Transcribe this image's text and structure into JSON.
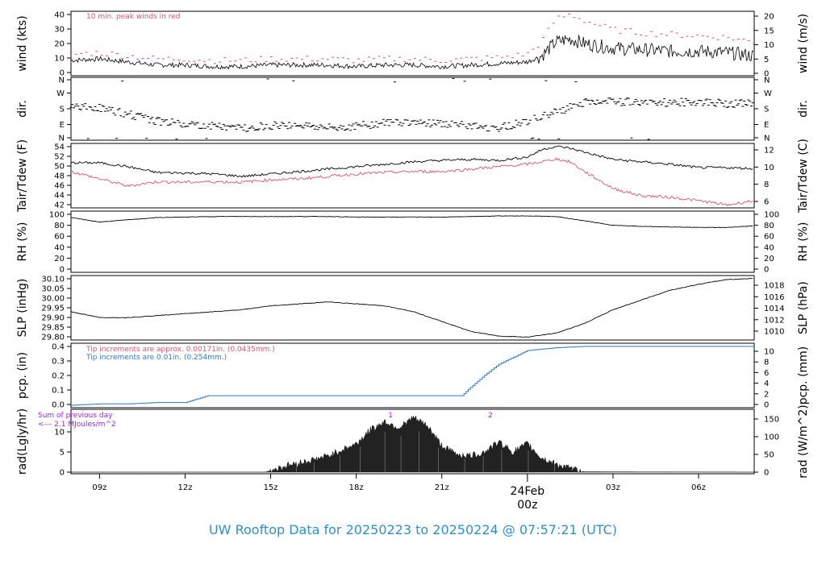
{
  "title": "UW Rooftop Data for 20250223  to  20250224 @ 07:57:21  (UTC)",
  "colors": {
    "title": "#2c8fd6",
    "red": "#df536b",
    "blue": "#2c78c8",
    "purple": "#a020f0",
    "black": "#000000",
    "day_label": "#df536b"
  },
  "time_axis": {
    "tick_labels": [
      "09z",
      "12z",
      "15z",
      "18z",
      "21z",
      "03z",
      "06z"
    ],
    "tick_hours": [
      9,
      12,
      15,
      18,
      21,
      27,
      30
    ],
    "day_label": "24Feb",
    "day_sub": "00z",
    "day_hour": 24,
    "start_hour": 8.0,
    "end_hour": 31.95
  },
  "chart_data": [
    {
      "type": "line",
      "name": "wind",
      "ylabel_left": "wind (kts)",
      "ylabel_right": "wind (m/s)",
      "ylim": [
        0,
        42
      ],
      "left_ticks": [
        "0",
        "10",
        "20",
        "30",
        "40"
      ],
      "right_ticks": [
        "0",
        "5",
        "10",
        "15",
        "20"
      ],
      "annotation": "10 min. peak winds in red",
      "x": [
        8,
        9,
        10,
        11,
        12,
        13,
        14,
        15,
        16,
        17,
        18,
        19,
        20,
        21,
        22,
        23,
        24,
        24.5,
        25,
        25.5,
        26,
        27,
        28,
        29,
        30,
        31,
        31.95
      ],
      "series": [
        {
          "values": [
            10,
            11,
            9,
            7,
            7,
            6,
            6,
            7,
            7,
            7,
            6,
            7,
            7,
            6,
            7,
            8,
            9,
            13,
            22,
            24,
            21,
            18,
            17,
            16,
            16,
            15,
            13
          ]
        },
        {
          "values": [
            14,
            15,
            13,
            11,
            11,
            10,
            10,
            11,
            11,
            11,
            10,
            11,
            11,
            10,
            11,
            12,
            14,
            22,
            37,
            40,
            36,
            30,
            28,
            27,
            26,
            25,
            22
          ]
        }
      ]
    },
    {
      "type": "scatter",
      "name": "direction",
      "ylabel_left": "dir.",
      "ylabel_right": "dir.",
      "left_ticks": [
        "N",
        "E",
        "S",
        "W",
        "N"
      ],
      "right_ticks": [
        "N",
        "E",
        "S",
        "W",
        "N"
      ],
      "ylim": [
        0,
        360
      ],
      "x": [
        8,
        9,
        10,
        11,
        12,
        13,
        14,
        15,
        16,
        17,
        18,
        19,
        20,
        21,
        22,
        23,
        24,
        25,
        26,
        27,
        28,
        29,
        30,
        31,
        31.95
      ],
      "values": [
        200,
        185,
        150,
        110,
        95,
        80,
        70,
        85,
        90,
        70,
        80,
        100,
        105,
        95,
        80,
        70,
        110,
        160,
        215,
        220,
        220,
        215,
        220,
        210,
        210
      ]
    },
    {
      "type": "line",
      "name": "temperature",
      "ylabel_left": "Tair/Tdew (F)",
      "ylabel_right": "Tair/Tdew (C)",
      "ylim": [
        41.5,
        54.8
      ],
      "left_ticks": [
        "42",
        "44",
        "46",
        "48",
        "50",
        "52",
        "54"
      ],
      "right_ticks": [
        "6",
        "8",
        "10",
        "12"
      ],
      "x": [
        8,
        9,
        10,
        11,
        12,
        13,
        14,
        15,
        16,
        17,
        18,
        19,
        20,
        21,
        22,
        23,
        24,
        24.5,
        25,
        25.5,
        26,
        27,
        28,
        29,
        30,
        31,
        31.95
      ],
      "series": [
        {
          "values": [
            50.8,
            50.8,
            50.0,
            48.8,
            48.7,
            48.5,
            48.0,
            48.5,
            49.0,
            49.5,
            50.0,
            50.5,
            51.0,
            51.3,
            51.5,
            51.3,
            52.0,
            53.5,
            54.2,
            53.8,
            53.0,
            51.5,
            51.0,
            50.5,
            49.8,
            49.8,
            49.6
          ]
        },
        {
          "values": [
            49.0,
            47.5,
            46.0,
            46.9,
            46.8,
            46.9,
            46.8,
            47.3,
            47.5,
            48.0,
            48.5,
            48.8,
            49.0,
            49.0,
            49.5,
            50.0,
            50.5,
            51.0,
            51.6,
            51.0,
            49.0,
            45.5,
            44.0,
            43.7,
            43.0,
            42.1,
            43.0
          ]
        }
      ]
    },
    {
      "type": "line",
      "name": "rh",
      "ylabel_left": "RH (%)",
      "ylabel_right": "RH (%)",
      "ylim": [
        0,
        100
      ],
      "left_ticks": [
        "0",
        "20",
        "40",
        "60",
        "80",
        "100"
      ],
      "right_ticks": [
        "0",
        "20",
        "40",
        "60",
        "80",
        "100"
      ],
      "x": [
        8,
        9,
        10,
        11,
        12,
        13,
        14,
        15,
        16,
        17,
        18,
        19,
        20,
        21,
        22,
        23,
        24,
        25,
        26,
        27,
        28,
        29,
        30,
        31,
        31.95
      ],
      "values": [
        94,
        86,
        90,
        94,
        95,
        96,
        96,
        96,
        96,
        96,
        95,
        95,
        95,
        95,
        96,
        97,
        97,
        96,
        88,
        80,
        78,
        77,
        76,
        76,
        79
      ]
    },
    {
      "type": "line",
      "name": "pressure",
      "ylabel_left": "SLP (inHg)",
      "ylabel_right": "SLP (hPa)",
      "ylim": [
        29.775,
        30.105
      ],
      "left_ticks": [
        "29.80",
        "29.85",
        "29.90",
        "29.95",
        "30.00",
        "30.05",
        "30.10"
      ],
      "right_ticks": [
        "1010",
        "1012",
        "1014",
        "1016",
        "1018"
      ],
      "x": [
        8,
        9,
        10,
        11,
        12,
        13,
        14,
        15,
        16,
        17,
        18,
        19,
        20,
        21,
        22,
        23,
        24,
        25,
        26,
        27,
        28,
        29,
        30,
        31,
        31.95
      ],
      "values": [
        29.92,
        29.89,
        29.89,
        29.9,
        29.91,
        29.92,
        29.93,
        29.95,
        29.96,
        29.97,
        29.96,
        29.95,
        29.92,
        29.87,
        29.82,
        29.795,
        29.79,
        29.81,
        29.86,
        29.93,
        29.98,
        30.03,
        30.06,
        30.085,
        30.09
      ]
    },
    {
      "type": "area",
      "name": "precipitation",
      "ylabel_left": "pcp. (in)",
      "ylabel_right": "pcp. (mm)",
      "ylim": [
        0,
        0.43
      ],
      "left_ticks": [
        "0.0",
        "0.1",
        "0.2",
        "0.3",
        "0.4"
      ],
      "right_ticks": [
        "0",
        "2",
        "4",
        "6",
        "8",
        "10"
      ],
      "annotation_red": "Tip increments are approx. 0.00171in. (0.0435mm.)",
      "annotation_blue": "Tip increments are 0.01in. (0.254mm.)",
      "x": [
        8,
        9,
        10,
        11,
        12,
        12.8,
        13,
        15,
        17,
        19,
        21,
        21.7,
        22.0,
        22.5,
        23.0,
        23.5,
        24.0,
        25.0,
        26.0,
        28,
        30,
        31.95
      ],
      "values": [
        0.0,
        0.01,
        0.01,
        0.02,
        0.02,
        0.07,
        0.07,
        0.07,
        0.07,
        0.07,
        0.07,
        0.07,
        0.13,
        0.22,
        0.3,
        0.35,
        0.4,
        0.42,
        0.43,
        0.43,
        0.43,
        0.43
      ]
    },
    {
      "type": "area",
      "name": "radiation",
      "ylabel_left": "rad(Lgly/hr)",
      "ylabel_right": "rad (W/m^2)",
      "ylim": [
        0,
        14.5
      ],
      "left_ticks": [
        "0",
        "5",
        "10"
      ],
      "right_ticks": [
        "0",
        "50",
        "100",
        "150"
      ],
      "annotation_line1": "Sum of previous day",
      "annotation_line2": "<--- 2.1 MJoules/m^2",
      "peak_markers": [
        {
          "label": "1",
          "hour": 19.2
        },
        {
          "label": "2",
          "hour": 22.7
        }
      ],
      "x": [
        8,
        14,
        14.8,
        15.5,
        16,
        16.5,
        17,
        17.5,
        18,
        18.5,
        19.0,
        19.5,
        20.0,
        20.5,
        21,
        21.5,
        22.0,
        22.5,
        23.0,
        23.5,
        24.0,
        24.5,
        25.0,
        25.5,
        26,
        31.95
      ],
      "values": [
        0,
        0,
        0,
        1.5,
        2.3,
        3.0,
        4.0,
        5.5,
        7.0,
        10.5,
        12.5,
        11.0,
        13.5,
        11.5,
        6.5,
        4.5,
        4.0,
        5.0,
        7.5,
        5.0,
        7.0,
        3.5,
        2.0,
        0.8,
        0.1,
        0
      ]
    }
  ]
}
